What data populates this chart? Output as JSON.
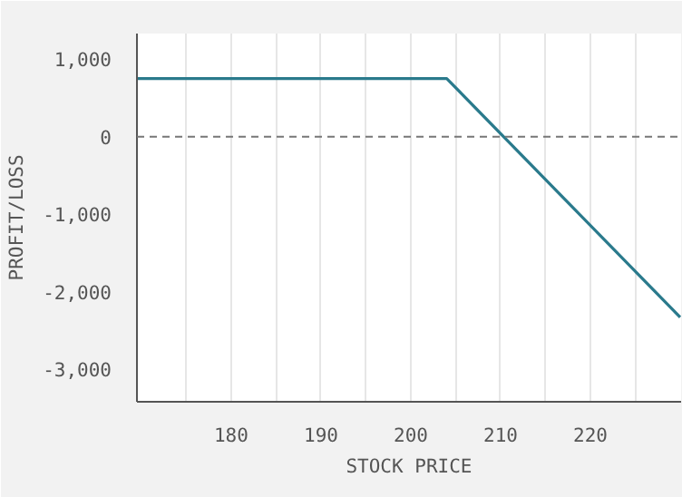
{
  "chart_data": {
    "type": "line",
    "xlabel": "STOCK PRICE",
    "ylabel": "PROFIT/LOSS",
    "x": [
      169.5,
      204,
      230
    ],
    "series": [
      {
        "color": "#2a7a8c",
        "values": [
          750,
          750,
          -2330
        ]
      }
    ],
    "xlim": [
      169.5,
      230.1
    ],
    "ylim": [
      -3420,
      1330
    ],
    "xticks": [
      {
        "value": 175,
        "label": null
      },
      180,
      {
        "value": 185,
        "label": null
      },
      190,
      {
        "value": 195,
        "label": null
      },
      200,
      {
        "value": 205,
        "label": null
      },
      210,
      {
        "value": 215,
        "label": null
      },
      220,
      {
        "value": 225,
        "label": null
      }
    ],
    "yticks": [
      {
        "value": 1000,
        "label": "1,000"
      },
      0,
      {
        "value": -1000,
        "label": "-1,000"
      },
      {
        "value": -2000,
        "label": "-2,000"
      },
      {
        "value": -3000,
        "label": "-3,000"
      }
    ],
    "ref_lines": [
      {
        "axis": "y",
        "value": 0,
        "color": "#777777",
        "line_style": "dashed"
      }
    ],
    "grid": "x",
    "marker": "none",
    "line_style": "solid"
  }
}
